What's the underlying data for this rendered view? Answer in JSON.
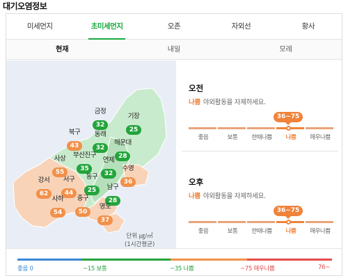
{
  "title": "대기오염정보",
  "tabs": [
    {
      "label": "미세먼지",
      "active": false
    },
    {
      "label": "초미세먼지",
      "active": true
    },
    {
      "label": "오존",
      "active": false
    },
    {
      "label": "자외선",
      "active": false
    },
    {
      "label": "황사",
      "active": false
    }
  ],
  "subtabs": [
    {
      "label": "현재",
      "active": true
    },
    {
      "label": "내일",
      "active": false
    },
    {
      "label": "모레",
      "active": false
    }
  ],
  "map": {
    "regions": [
      {
        "name": "금정",
        "value": "32",
        "level": "g"
      },
      {
        "name": "기장",
        "value": "25",
        "level": "g"
      },
      {
        "name": "북구",
        "value": "43",
        "level": "o"
      },
      {
        "name": "동래",
        "value": "32",
        "level": "g"
      },
      {
        "name": "해운대",
        "value": "28",
        "level": "g"
      },
      {
        "name": "사상",
        "value": "55",
        "level": "o"
      },
      {
        "name": "부산진구",
        "value": "35",
        "level": "g"
      },
      {
        "name": "연제",
        "value": "32",
        "level": "g"
      },
      {
        "name": "수영",
        "value": "36",
        "level": "o"
      },
      {
        "name": "강서",
        "value": "62",
        "level": "o"
      },
      {
        "name": "서구",
        "value": "44",
        "level": "o"
      },
      {
        "name": "동구",
        "value": "25",
        "level": "g"
      },
      {
        "name": "남구",
        "value": "28",
        "level": "g"
      },
      {
        "name": "사하",
        "value": "54",
        "level": "o"
      },
      {
        "name": "중구",
        "value": "50",
        "level": "o"
      },
      {
        "name": "영도",
        "value": "37",
        "level": "o"
      }
    ],
    "unit_line1": "단위 ㎍/㎥",
    "unit_line2": "(1시간평균)"
  },
  "forecast": [
    {
      "period": "오전",
      "status": "나쁨",
      "message": "야외활동을 자제하세요.",
      "range": "36~75",
      "scale": [
        "좋음",
        "보통",
        "한때나쁨",
        "나쁨",
        "매우나쁨"
      ],
      "active_index": 3
    },
    {
      "period": "오후",
      "status": "나쁨",
      "message": "야외활동을 자제하세요.",
      "range": "36~75",
      "scale": [
        "좋음",
        "보통",
        "한때나쁨",
        "나쁨",
        "매우나쁨"
      ],
      "active_index": 3
    }
  ],
  "legend": [
    {
      "text": "좋음 0",
      "color": "#3b86d6"
    },
    {
      "text": "~15 보통",
      "color": "#23a43c"
    },
    {
      "text": "~35 나쁨",
      "color": "#f2904a"
    },
    {
      "text": "~75 매우나쁨",
      "color": "#e64a4a"
    },
    {
      "text": "76~",
      "color": "#e64a4a"
    }
  ]
}
